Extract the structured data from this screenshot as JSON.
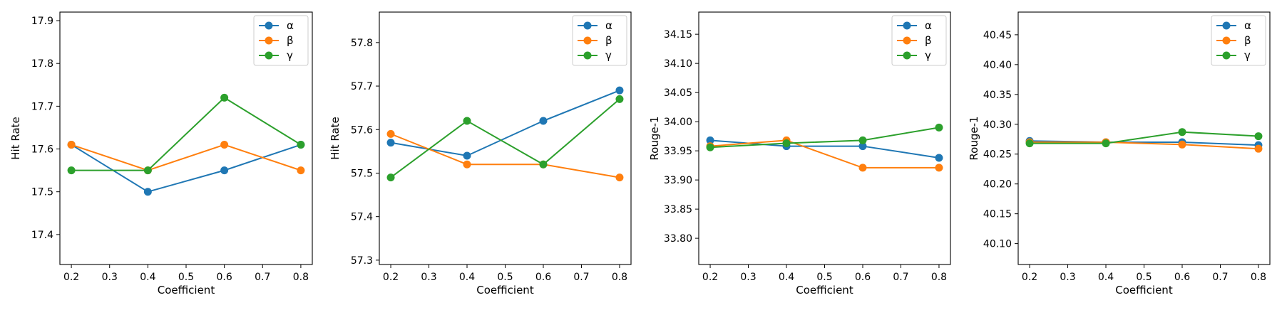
{
  "colors": {
    "alpha": "#1f77b4",
    "beta": "#ff7f0e",
    "gamma": "#2ca02c"
  },
  "chart_data": [
    {
      "type": "line",
      "xlabel": "Coefficient",
      "ylabel": "Hit Rate",
      "x": [
        0.2,
        0.4,
        0.6,
        0.8
      ],
      "xticks": [
        "0.2",
        "0.3",
        "0.4",
        "0.5",
        "0.6",
        "0.7",
        "0.8"
      ],
      "yticks": [
        "17.4",
        "17.5",
        "17.6",
        "17.7",
        "17.8",
        "17.9"
      ],
      "xlim": [
        0.17,
        0.83
      ],
      "ylim": [
        17.33,
        17.92
      ],
      "legend": "top-right",
      "grid": false,
      "series": [
        {
          "name": "α",
          "values": [
            17.61,
            17.5,
            17.55,
            17.61
          ]
        },
        {
          "name": "β",
          "values": [
            17.61,
            17.55,
            17.61,
            17.55
          ]
        },
        {
          "name": "γ",
          "values": [
            17.55,
            17.55,
            17.72,
            17.61
          ]
        }
      ]
    },
    {
      "type": "line",
      "xlabel": "Coefficient",
      "ylabel": "Hit Rate",
      "x": [
        0.2,
        0.4,
        0.6,
        0.8
      ],
      "xticks": [
        "0.2",
        "0.3",
        "0.4",
        "0.5",
        "0.6",
        "0.7",
        "0.8"
      ],
      "yticks": [
        "57.3",
        "57.4",
        "57.5",
        "57.6",
        "57.7",
        "57.8"
      ],
      "xlim": [
        0.17,
        0.83
      ],
      "ylim": [
        57.29,
        57.87
      ],
      "legend": "top-right",
      "grid": false,
      "series": [
        {
          "name": "α",
          "values": [
            57.57,
            57.54,
            57.62,
            57.69
          ]
        },
        {
          "name": "β",
          "values": [
            57.59,
            57.52,
            57.52,
            57.49
          ]
        },
        {
          "name": "γ",
          "values": [
            57.49,
            57.62,
            57.52,
            57.67
          ]
        }
      ]
    },
    {
      "type": "line",
      "xlabel": "Coefficient",
      "ylabel": "Rouge-1",
      "x": [
        0.2,
        0.4,
        0.6,
        0.8
      ],
      "xticks": [
        "0.2",
        "0.3",
        "0.4",
        "0.5",
        "0.6",
        "0.7",
        "0.8"
      ],
      "yticks": [
        "33.80",
        "33.85",
        "33.90",
        "33.95",
        "34.00",
        "34.05",
        "34.10",
        "34.15"
      ],
      "xlim": [
        0.17,
        0.83
      ],
      "ylim": [
        33.755,
        34.188
      ],
      "legend": "top-right",
      "grid": false,
      "series": [
        {
          "name": "α",
          "values": [
            33.968,
            33.958,
            33.958,
            33.938
          ]
        },
        {
          "name": "β",
          "values": [
            33.958,
            33.968,
            33.921,
            33.921
          ]
        },
        {
          "name": "γ",
          "values": [
            33.956,
            33.963,
            33.968,
            33.99
          ]
        }
      ]
    },
    {
      "type": "line",
      "xlabel": "Coefficient",
      "ylabel": "Rouge-1",
      "x": [
        0.2,
        0.4,
        0.6,
        0.8
      ],
      "xticks": [
        "0.2",
        "0.3",
        "0.4",
        "0.5",
        "0.6",
        "0.7",
        "0.8"
      ],
      "yticks": [
        "40.10",
        "40.15",
        "40.20",
        "40.25",
        "40.30",
        "40.35",
        "40.40",
        "40.45"
      ],
      "xlim": [
        0.17,
        0.83
      ],
      "ylim": [
        40.065,
        40.488
      ],
      "legend": "top-right",
      "grid": false,
      "series": [
        {
          "name": "α",
          "values": [
            40.272,
            40.27,
            40.27,
            40.265
          ]
        },
        {
          "name": "β",
          "values": [
            40.27,
            40.27,
            40.266,
            40.259
          ]
        },
        {
          "name": "γ",
          "values": [
            40.268,
            40.268,
            40.287,
            40.28
          ]
        }
      ]
    }
  ]
}
